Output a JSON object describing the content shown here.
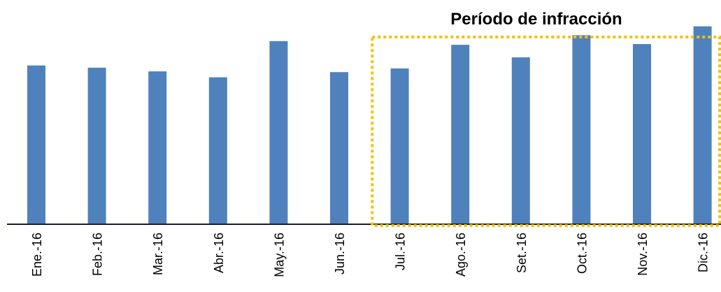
{
  "chart_data": {
    "type": "bar",
    "categories": [
      "Ene.-16",
      "Feb.-16",
      "Mar.-16",
      "Abr.-16",
      "May.-16",
      "Jun.-16",
      "Jul.-16",
      "Ago.-16",
      "Set.-16",
      "Oct.-16",
      "Nov.-16",
      "Dic.-16"
    ],
    "values": [
      215,
      212,
      207,
      199,
      248,
      206,
      211,
      243,
      226,
      256,
      244,
      268
    ],
    "title": "",
    "xlabel": "",
    "ylabel": "",
    "ylim": [
      0,
      280
    ],
    "grid": false,
    "legend": "none",
    "bar_color": "#4f81bd",
    "annotations": [
      {
        "label": "Período de infracción",
        "from_category": "Jul.-16",
        "to_category": "Dic.-16",
        "style": "dotted-box",
        "color": "#f2c200"
      }
    ]
  }
}
